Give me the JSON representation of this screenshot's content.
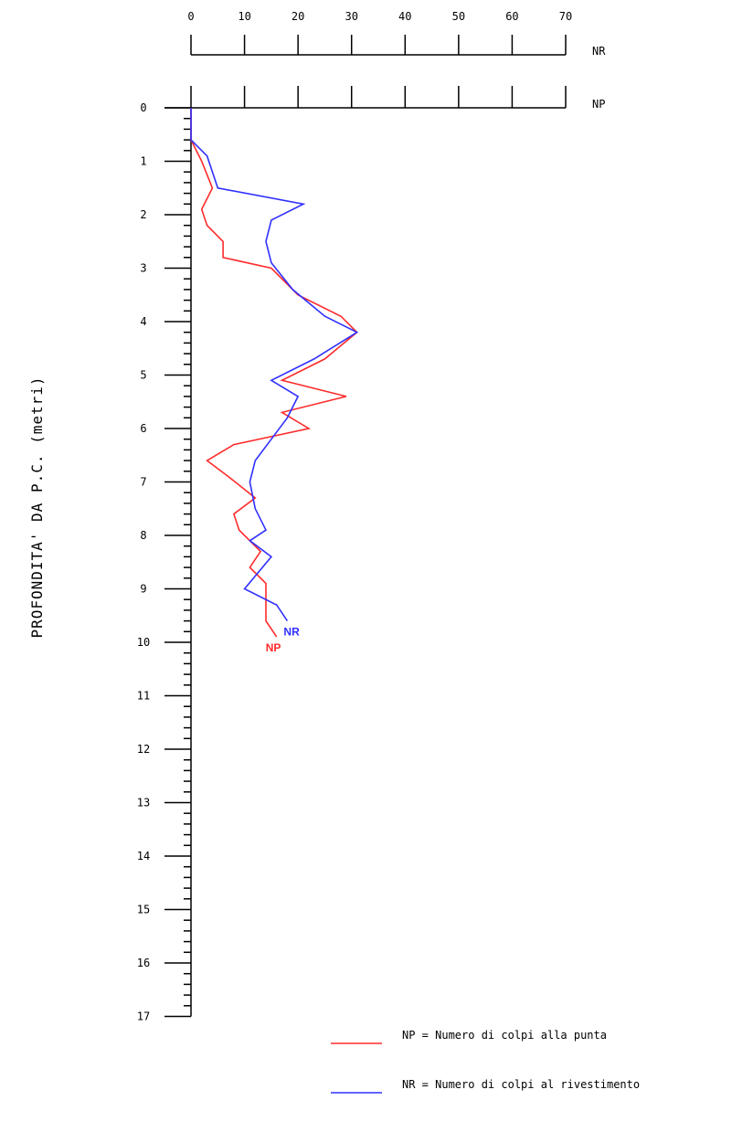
{
  "chart_data": {
    "type": "line",
    "orientation": "depth-profile",
    "ylabel": "PROFONDITA' DA P.C. (metri)",
    "x_axes": [
      {
        "name": "NR",
        "ticks": [
          0,
          10,
          20,
          30,
          40,
          50,
          60,
          70
        ],
        "range": [
          0,
          70
        ]
      },
      {
        "name": "NP",
        "ticks": [
          0,
          10,
          20,
          30,
          40,
          50,
          60,
          70
        ],
        "range": [
          0,
          70
        ]
      }
    ],
    "y_ticks": [
      0,
      1,
      2,
      3,
      4,
      5,
      6,
      7,
      8,
      9,
      10,
      11,
      12,
      13,
      14,
      15,
      16,
      17
    ],
    "ylim": [
      0,
      17
    ],
    "x_tick_labels": [
      "0",
      "10",
      "20",
      "30",
      "40",
      "50",
      "60",
      "70"
    ],
    "y_tick_labels": [
      "0",
      "1",
      "2",
      "3",
      "4",
      "5",
      "6",
      "7",
      "8",
      "9",
      "10",
      "11",
      "12",
      "13",
      "14",
      "15",
      "16",
      "17"
    ],
    "series": [
      {
        "name": "NP",
        "color": "#ff2b2b",
        "end_label": "NP",
        "points": [
          [
            0,
            0
          ],
          [
            0,
            0.6
          ],
          [
            2,
            1.0
          ],
          [
            4,
            1.5
          ],
          [
            2,
            1.9
          ],
          [
            3,
            2.2
          ],
          [
            6,
            2.5
          ],
          [
            6,
            2.8
          ],
          [
            15,
            3.0
          ],
          [
            20,
            3.5
          ],
          [
            28,
            3.9
          ],
          [
            31,
            4.2
          ],
          [
            25,
            4.7
          ],
          [
            17,
            5.1
          ],
          [
            29,
            5.4
          ],
          [
            17,
            5.7
          ],
          [
            22,
            6.0
          ],
          [
            8,
            6.3
          ],
          [
            3,
            6.6
          ],
          [
            7,
            6.9
          ],
          [
            12,
            7.3
          ],
          [
            8,
            7.6
          ],
          [
            9,
            7.9
          ],
          [
            13,
            8.3
          ],
          [
            11,
            8.6
          ],
          [
            14,
            8.9
          ],
          [
            14,
            9.3
          ],
          [
            14,
            9.6
          ],
          [
            16,
            9.9
          ]
        ]
      },
      {
        "name": "NR",
        "color": "#3030ff",
        "end_label": "NR",
        "points": [
          [
            0,
            0
          ],
          [
            0,
            0.6
          ],
          [
            3,
            0.9
          ],
          [
            5,
            1.5
          ],
          [
            21,
            1.8
          ],
          [
            15,
            2.1
          ],
          [
            14,
            2.5
          ],
          [
            15,
            2.9
          ],
          [
            19,
            3.4
          ],
          [
            25,
            3.9
          ],
          [
            31,
            4.2
          ],
          [
            23,
            4.7
          ],
          [
            15,
            5.1
          ],
          [
            20,
            5.4
          ],
          [
            18,
            5.8
          ],
          [
            15,
            6.2
          ],
          [
            12,
            6.6
          ],
          [
            11,
            7.0
          ],
          [
            12,
            7.5
          ],
          [
            14,
            7.9
          ],
          [
            11,
            8.1
          ],
          [
            15,
            8.4
          ],
          [
            10,
            9.0
          ],
          [
            16,
            9.3
          ],
          [
            18,
            9.6
          ]
        ]
      }
    ],
    "legend": {
      "placement": "bottom-right",
      "items": [
        {
          "series": "NP",
          "text": "NP = Numero di colpi alla punta",
          "color": "#ff2b2b"
        },
        {
          "series": "NR",
          "text": "NR = Numero di colpi al rivestimento",
          "color": "#3030ff"
        }
      ]
    }
  }
}
